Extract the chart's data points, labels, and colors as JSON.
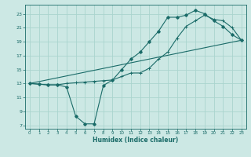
{
  "xlabel": "Humidex (Indice chaleur)",
  "background_color": "#cce8e4",
  "grid_color": "#aad4ce",
  "line_color": "#1a6b68",
  "xlim": [
    -0.5,
    23.5
  ],
  "ylim": [
    6.5,
    24.3
  ],
  "xticks": [
    0,
    1,
    2,
    3,
    4,
    5,
    6,
    7,
    8,
    9,
    10,
    11,
    12,
    13,
    14,
    15,
    16,
    17,
    18,
    19,
    20,
    21,
    22,
    23
  ],
  "yticks": [
    7,
    9,
    11,
    13,
    15,
    17,
    19,
    21,
    23
  ],
  "line1_x": [
    0,
    1,
    2,
    3,
    4,
    5,
    6,
    7,
    8,
    9,
    10,
    11,
    12,
    13,
    14,
    15,
    16,
    17,
    18,
    19,
    20,
    21,
    22,
    23
  ],
  "line1_y": [
    13,
    12.9,
    12.8,
    12.8,
    12.5,
    8.3,
    7.2,
    7.2,
    12.7,
    13.5,
    15.0,
    16.5,
    17.5,
    19.0,
    20.5,
    22.5,
    22.5,
    22.8,
    23.5,
    23.0,
    22.0,
    21.2,
    20.0,
    19.2
  ],
  "line2_x": [
    0,
    1,
    2,
    3,
    4,
    5,
    6,
    7,
    8,
    9,
    10,
    11,
    12,
    13,
    14,
    15,
    16,
    17,
    18,
    19,
    20,
    21,
    22,
    23
  ],
  "line2_y": [
    13,
    12.9,
    12.8,
    12.8,
    13.0,
    13.1,
    13.2,
    13.3,
    13.4,
    13.5,
    14.0,
    14.5,
    14.5,
    15.2,
    16.5,
    17.5,
    19.5,
    21.2,
    22.0,
    22.8,
    22.2,
    22.0,
    21.0,
    19.2
  ],
  "line3_x": [
    0,
    23
  ],
  "line3_y": [
    13,
    19.2
  ]
}
